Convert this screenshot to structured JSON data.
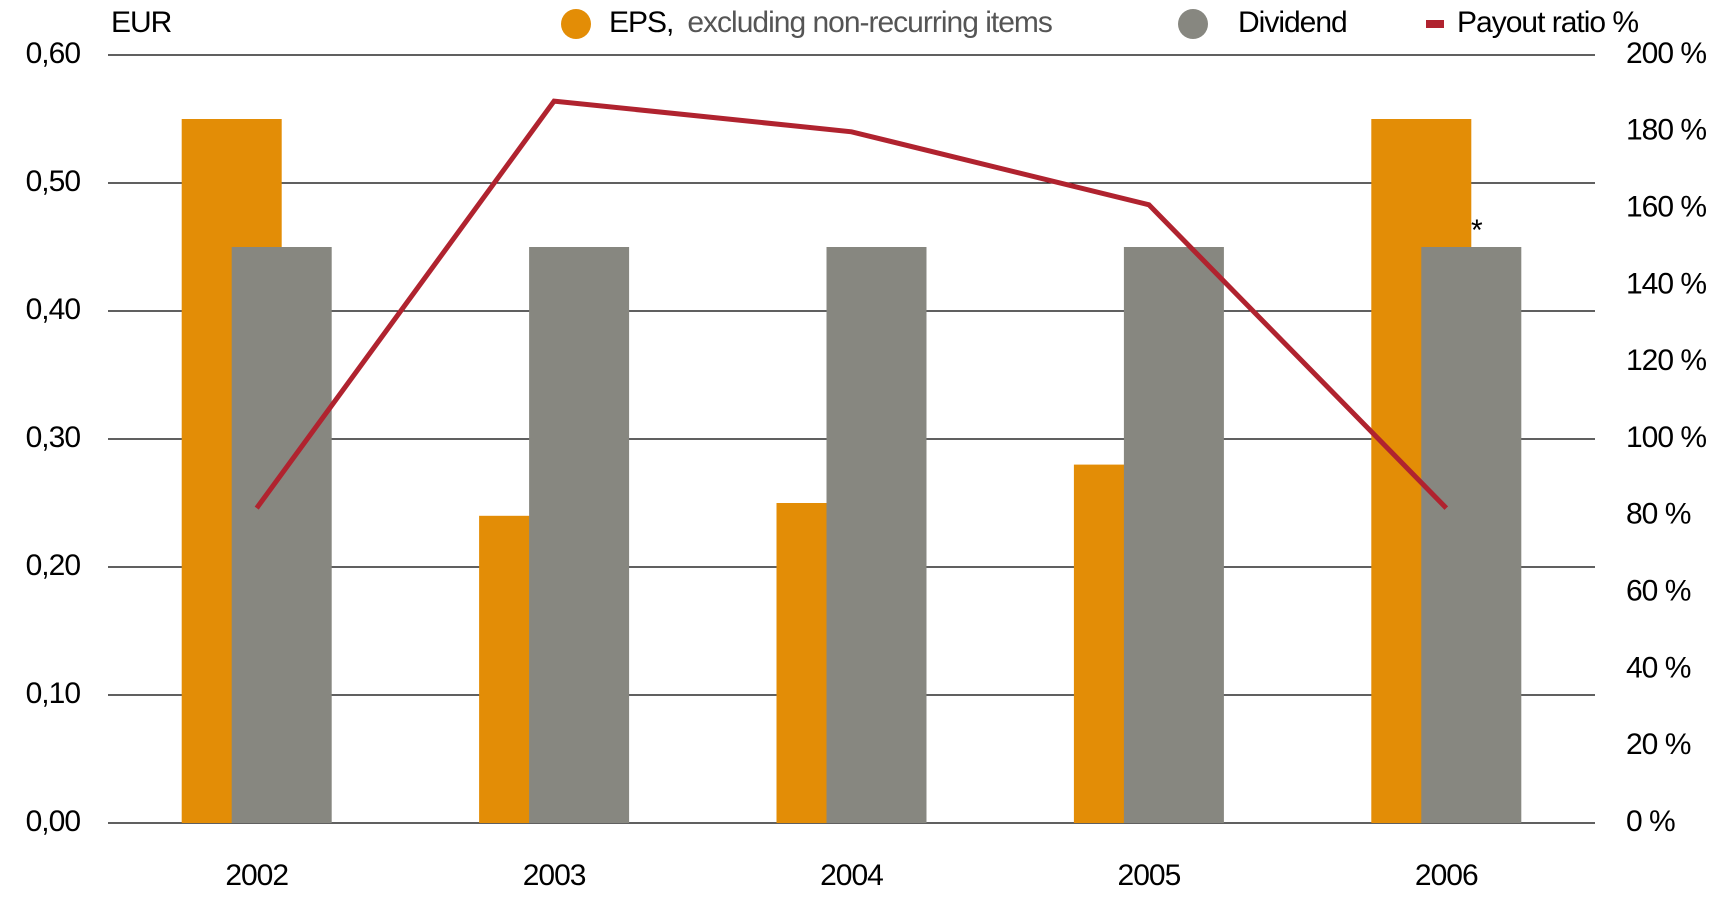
{
  "chart_data": {
    "type": "bar",
    "y_unit_label": "EUR",
    "categories": [
      "2002",
      "2003",
      "2004",
      "2005",
      "2006"
    ],
    "series": [
      {
        "name": "EPS,",
        "name_note": "excluding non-recurring items",
        "color": "#e38d06",
        "values": [
          0.55,
          0.24,
          0.25,
          0.28,
          0.55
        ]
      },
      {
        "name": "Dividend",
        "color": "#878780",
        "values": [
          0.45,
          0.45,
          0.45,
          0.45,
          0.45
        ]
      },
      {
        "name": "Payout ratio %",
        "color": "#b0232f",
        "type": "line",
        "axis": "y2",
        "values": [
          82,
          188,
          180,
          161,
          82
        ]
      }
    ],
    "annotations": [
      {
        "text": "*",
        "category": 4
      }
    ],
    "ylim": [
      0,
      0.6
    ],
    "yticks": [
      {
        "value": 0,
        "label": "0,00"
      },
      {
        "value": 0.1,
        "label": "0,10"
      },
      {
        "value": 0.2,
        "label": "0,20"
      },
      {
        "value": 0.3,
        "label": "0,30"
      },
      {
        "value": 0.4,
        "label": "0,40"
      },
      {
        "value": 0.5,
        "label": "0,50"
      },
      {
        "value": 0.6,
        "label": "0,60"
      }
    ],
    "y2lim": [
      0,
      200
    ],
    "y2ticks": [
      {
        "value": 0,
        "label": "0 %"
      },
      {
        "value": 20,
        "label": "20 %"
      },
      {
        "value": 40,
        "label": "40 %"
      },
      {
        "value": 60,
        "label": "60 %"
      },
      {
        "value": 80,
        "label": "80 %"
      },
      {
        "value": 100,
        "label": "100 %"
      },
      {
        "value": 120,
        "label": "120 %"
      },
      {
        "value": 140,
        "label": "140 %"
      },
      {
        "value": 160,
        "label": "160 %"
      },
      {
        "value": 180,
        "label": "180 %"
      },
      {
        "value": 200,
        "label": "200 %"
      }
    ],
    "grid": true,
    "legend": "top"
  }
}
